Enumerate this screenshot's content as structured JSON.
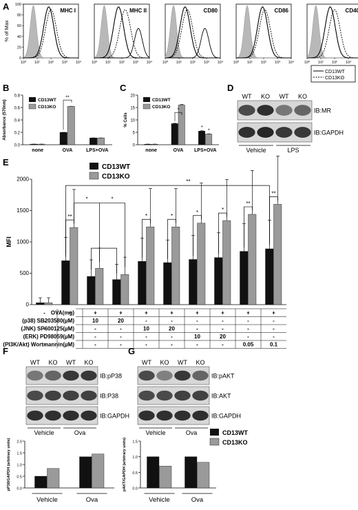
{
  "panel_letters": {
    "A": "A",
    "B": "B",
    "C": "C",
    "D": "D",
    "E": "E",
    "F": "F",
    "G": "G"
  },
  "legend_main": {
    "wt": "CD13WT",
    "ko": "CD13KO"
  },
  "legend_flow": {
    "wt": "CD13WT",
    "ko": "CD13KO"
  },
  "colors": {
    "wt": "#111111",
    "ko": "#9a9a9a",
    "shade": "#b8b8b8"
  },
  "chart_data": [
    {
      "id": "A",
      "type": "area",
      "ylabel": "% of Max",
      "ytick_labels": [
        "0",
        "20",
        "40",
        "60",
        "80",
        "100"
      ],
      "xtick_labels": [
        "10⁰",
        "10¹",
        "10²",
        "10³",
        "10⁴"
      ],
      "markers": [
        "MHC I",
        "MHC II",
        "CD80",
        "CD86",
        "CD40"
      ],
      "series": [
        {
          "name": "CD13WT",
          "style": "solid"
        },
        {
          "name": "CD13KO",
          "style": "dashed"
        }
      ]
    },
    {
      "id": "B",
      "type": "bar",
      "ylabel": "Absorbance (570nm)",
      "ytick_labels": [
        "0.0",
        "0.2",
        "0.4",
        "0.6",
        "0.8"
      ],
      "ylim": [
        0,
        0.8
      ],
      "categories": [
        "none",
        "OVA",
        "LPS+OVA"
      ],
      "series": [
        {
          "name": "CD13WT",
          "values": [
            0.01,
            0.2,
            0.11
          ]
        },
        {
          "name": "CD13KO",
          "values": [
            0.01,
            0.62,
            0.11
          ]
        }
      ],
      "annotations": [
        "**"
      ]
    },
    {
      "id": "C",
      "type": "bar",
      "ylabel": "% Cells",
      "ytick_labels": [
        "0",
        "5",
        "10",
        "15",
        "20"
      ],
      "ylim": [
        0,
        20
      ],
      "categories": [
        "none",
        "OVA",
        "LPS+OVA"
      ],
      "series": [
        {
          "name": "CD13WT",
          "values": [
            0.2,
            8.5,
            5.5
          ]
        },
        {
          "name": "CD13KO",
          "values": [
            0.2,
            16,
            4.3
          ]
        }
      ],
      "annotations": [
        "*",
        "*",
        "*"
      ]
    },
    {
      "id": "E",
      "type": "bar",
      "ylabel": "MFI",
      "ytick_labels": [
        "0",
        "500",
        "1000",
        "1500",
        "2000"
      ],
      "ylim": [
        0,
        2000
      ],
      "categories": [
        "1",
        "2",
        "3",
        "4",
        "5",
        "6",
        "7",
        "8",
        "9",
        "10"
      ],
      "series": [
        {
          "name": "CD13WT",
          "values": [
            30,
            700,
            450,
            400,
            690,
            670,
            720,
            750,
            850,
            890
          ]
        },
        {
          "name": "CD13KO",
          "values": [
            30,
            1230,
            580,
            480,
            1240,
            1240,
            1300,
            1340,
            1440,
            1600
          ]
        }
      ],
      "annotations": [
        "**",
        "*",
        "*",
        "*",
        "*",
        "*",
        "*",
        "*",
        "**",
        "**"
      ],
      "table": {
        "row_labels": [
          "OVA(mg)",
          "(p38) SB203580(µM)",
          "(JNK) SP600125(µM)",
          "(ERK) PD98059(µM)",
          "(PI3K/Akt) Wortmannin(µM)"
        ],
        "rows": [
          [
            "-",
            "+",
            "+",
            "+",
            "+",
            "+",
            "+",
            "+",
            "+",
            "+"
          ],
          [
            "-",
            "-",
            "10",
            "20",
            "-",
            "-",
            "-",
            "-",
            "-",
            "-"
          ],
          [
            "-",
            "-",
            "-",
            "-",
            "10",
            "20",
            "-",
            "-",
            "-",
            "-"
          ],
          [
            "-",
            "-",
            "-",
            "-",
            "-",
            "-",
            "10",
            "20",
            "-",
            "-"
          ],
          [
            "-",
            "-",
            "-",
            "-",
            "-",
            "-",
            "-",
            "-",
            "0.05",
            "0.1"
          ]
        ]
      }
    },
    {
      "id": "F",
      "type": "bar",
      "ylabel": "pP38/GAPDH (arbitrary units)",
      "ytick_labels": [
        "0.0",
        "0.5",
        "1.0",
        "1.5",
        "2.0"
      ],
      "ylim": [
        0,
        2
      ],
      "categories": [
        "Vehicle",
        "Ova"
      ],
      "series": [
        {
          "name": "CD13WT",
          "values": [
            0.5,
            1.33
          ]
        },
        {
          "name": "CD13KO",
          "values": [
            0.83,
            1.45
          ]
        }
      ]
    },
    {
      "id": "G",
      "type": "bar",
      "ylabel": "pAKT/GAPDH (arbitrary units)",
      "ytick_labels": [
        "0.0",
        "0.5",
        "1.0",
        "1.5"
      ],
      "ylim": [
        0,
        1.5
      ],
      "categories": [
        "Vehicle",
        "Ova"
      ],
      "series": [
        {
          "name": "CD13WT",
          "values": [
            1.0,
            1.0
          ]
        },
        {
          "name": "CD13KO",
          "values": [
            0.7,
            0.82
          ]
        }
      ]
    }
  ],
  "blots": {
    "D": {
      "cols": [
        "WT",
        "KO",
        "WT",
        "KO"
      ],
      "rows": [
        "IB:MR",
        "IB:GAPDH"
      ],
      "groups": [
        "Vehicle",
        "LPS"
      ]
    },
    "F": {
      "cols": [
        "WT",
        "KO",
        "WT",
        "KO"
      ],
      "rows": [
        "IB:pP38",
        "IB:P38",
        "IB:GAPDH"
      ],
      "groups": [
        "Vehicle",
        "Ova"
      ]
    },
    "G": {
      "cols": [
        "WT",
        "KO",
        "WT",
        "KO"
      ],
      "rows": [
        "IB:pAKT",
        "IB:AKT",
        "IB:GAPDH"
      ],
      "groups": [
        "Vehicle",
        "Ova"
      ]
    }
  }
}
